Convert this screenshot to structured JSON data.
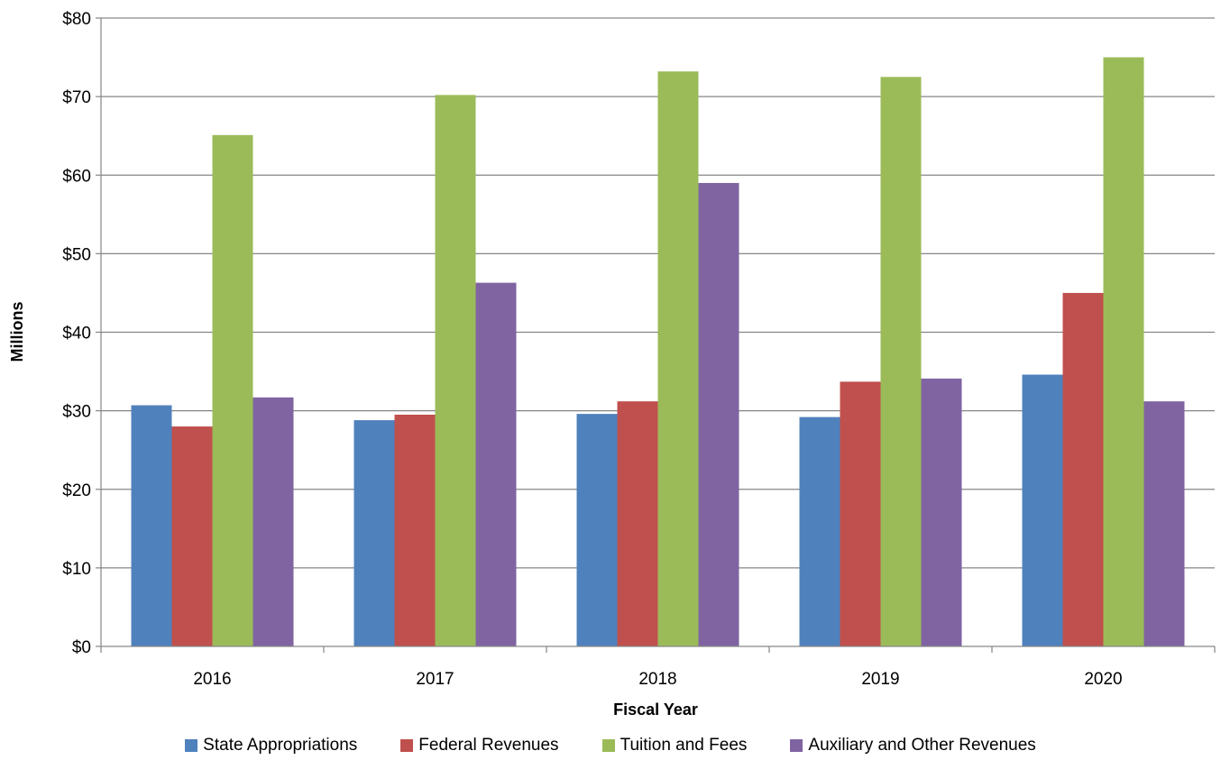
{
  "chart_data": {
    "type": "bar",
    "categories": [
      "2016",
      "2017",
      "2018",
      "2019",
      "2020"
    ],
    "series": [
      {
        "name": "State Appropriations",
        "color": "#4F81BD",
        "values": [
          30.7,
          28.8,
          29.6,
          29.2,
          34.6
        ]
      },
      {
        "name": "Federal Revenues",
        "color": "#C0504D",
        "values": [
          28.0,
          29.5,
          31.2,
          33.7,
          45.0
        ]
      },
      {
        "name": "Tuition and Fees",
        "color": "#9BBB59",
        "values": [
          65.1,
          70.2,
          73.2,
          72.5,
          75.0
        ]
      },
      {
        "name": "Auxiliary and Other Revenues",
        "color": "#8064A2",
        "values": [
          31.7,
          46.3,
          59.0,
          34.1,
          31.2
        ]
      }
    ],
    "xlabel": "Fiscal Year",
    "ylabel": "Millions",
    "ylim": [
      0,
      80
    ],
    "yticks": [
      0,
      10,
      20,
      30,
      40,
      50,
      60,
      70,
      80
    ],
    "ytick_labels": [
      "$0",
      "$10",
      "$20",
      "$30",
      "$40",
      "$50",
      "$60",
      "$70",
      "$80"
    ],
    "grid": true,
    "legend_position": "bottom"
  }
}
